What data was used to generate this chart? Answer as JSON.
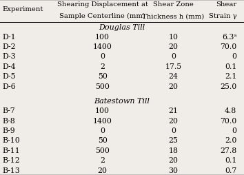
{
  "group1_label": "Douglas Till",
  "group1_rows": [
    [
      "D-1",
      "100",
      "10",
      "6.3ᵃ"
    ],
    [
      "D-2",
      "1400",
      "20",
      "70.0"
    ],
    [
      "D-3",
      "0",
      "0",
      "0"
    ],
    [
      "D-4",
      "2",
      "17.5",
      "0.1"
    ],
    [
      "D-5",
      "50",
      "24",
      "2.1"
    ],
    [
      "D-6",
      "500",
      "20",
      "25.0"
    ]
  ],
  "group2_label": "Batestown Till",
  "group2_rows": [
    [
      "B-7",
      "100",
      "21",
      "4.8"
    ],
    [
      "B-8",
      "1400",
      "20",
      "70.0"
    ],
    [
      "B-9",
      "0",
      "0",
      "0"
    ],
    [
      "B-10",
      "50",
      "25",
      "2.0"
    ],
    [
      "B-11",
      "500",
      "18",
      "27.8"
    ],
    [
      "B-12",
      "2",
      "20",
      "0.1"
    ],
    [
      "B-13",
      "20",
      "30",
      "0.7"
    ]
  ],
  "bg_color": "#f0ede8",
  "header_fontsize": 7.2,
  "data_fontsize": 7.8,
  "group_fontsize": 8.0
}
